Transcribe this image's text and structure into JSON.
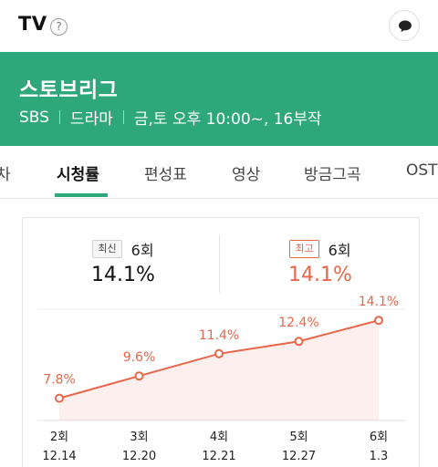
{
  "topbar": {
    "title": "TV",
    "help_icon": "?"
  },
  "header": {
    "title": "스토브리그",
    "network": "SBS",
    "genre": "드라마",
    "schedule": "금,토 오후 10:00~, 16부작"
  },
  "tabs": [
    {
      "label": "차"
    },
    {
      "label": "시청률"
    },
    {
      "label": "편성표"
    },
    {
      "label": "영상"
    },
    {
      "label": "방금그곡"
    },
    {
      "label": "OST"
    }
  ],
  "latest": {
    "badge": "최신",
    "episode": "6회",
    "value": "14.1%"
  },
  "best": {
    "badge": "최고",
    "episode": "6회",
    "value": "14.1%"
  },
  "colors": {
    "accent": "#2ea87a",
    "highlight": "#e8664a"
  },
  "chart_data": {
    "type": "area",
    "categories": [
      "2회",
      "3회",
      "4회",
      "5회",
      "6회"
    ],
    "dates": [
      "12.14",
      "12.20",
      "12.21",
      "12.27",
      "1.3"
    ],
    "values": [
      7.8,
      9.6,
      11.4,
      12.4,
      14.1
    ],
    "value_labels": [
      "7.8%",
      "9.6%",
      "11.4%",
      "12.4%",
      "14.1%"
    ],
    "ylim": [
      6,
      15
    ]
  }
}
